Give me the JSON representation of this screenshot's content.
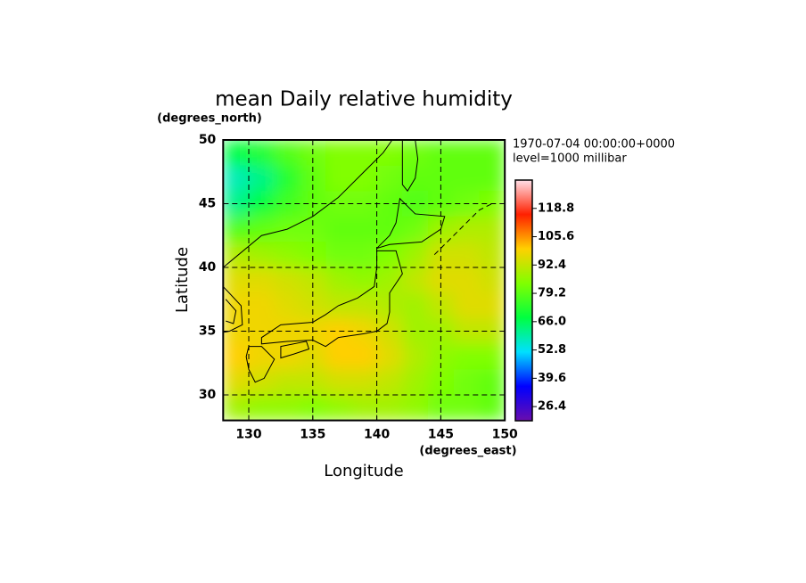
{
  "chart_data": {
    "type": "heatmap",
    "title": "mean Daily relative humidity",
    "x_label": "Longitude",
    "y_label": "Latitude",
    "x_unit": "(degrees_east)",
    "y_unit": "(degrees_north)",
    "annotations": [
      "1970-07-04 00:00:00+0000",
      "level=1000 millibar"
    ],
    "xlim": [
      128,
      150
    ],
    "ylim": [
      28,
      50
    ],
    "xticks": [
      130,
      135,
      140,
      145,
      150
    ],
    "yticks": [
      30,
      35,
      40,
      45,
      50
    ],
    "grid": true,
    "x": [
      129,
      131,
      133,
      135,
      137,
      139,
      141,
      143,
      145,
      147,
      149
    ],
    "y": [
      49,
      47,
      45,
      43,
      41,
      39,
      37,
      35,
      33,
      31,
      29
    ],
    "values": [
      [
        68,
        72,
        78,
        82,
        84,
        84,
        84,
        82,
        80,
        80,
        80
      ],
      [
        58,
        62,
        72,
        80,
        84,
        84,
        82,
        80,
        80,
        80,
        80
      ],
      [
        62,
        68,
        76,
        80,
        82,
        82,
        80,
        78,
        80,
        82,
        84
      ],
      [
        78,
        80,
        82,
        82,
        80,
        80,
        80,
        82,
        88,
        90,
        90
      ],
      [
        90,
        88,
        86,
        84,
        82,
        82,
        84,
        88,
        94,
        94,
        92
      ],
      [
        96,
        96,
        94,
        92,
        88,
        86,
        88,
        92,
        96,
        96,
        94
      ],
      [
        98,
        98,
        96,
        94,
        92,
        92,
        90,
        88,
        92,
        96,
        96
      ],
      [
        98,
        98,
        98,
        98,
        100,
        98,
        94,
        88,
        88,
        92,
        92
      ],
      [
        100,
        98,
        98,
        96,
        100,
        100,
        96,
        90,
        86,
        84,
        84
      ],
      [
        96,
        94,
        92,
        92,
        94,
        94,
        92,
        88,
        84,
        82,
        80
      ],
      [
        88,
        86,
        86,
        84,
        86,
        88,
        88,
        86,
        82,
        82,
        80
      ]
    ],
    "clim": [
      19.8,
      132
    ],
    "colorscale": [
      "#6a0dad",
      "#0000ff",
      "#00e0ff",
      "#00ff40",
      "#80ff00",
      "#ffd000",
      "#ff2000",
      "#ffe0e8"
    ],
    "cticks": [
      26.4,
      39.6,
      52.8,
      {
        "value": 66,
        "label": "66.0"
      },
      79.2,
      92.4,
      105.6,
      118.8
    ]
  }
}
